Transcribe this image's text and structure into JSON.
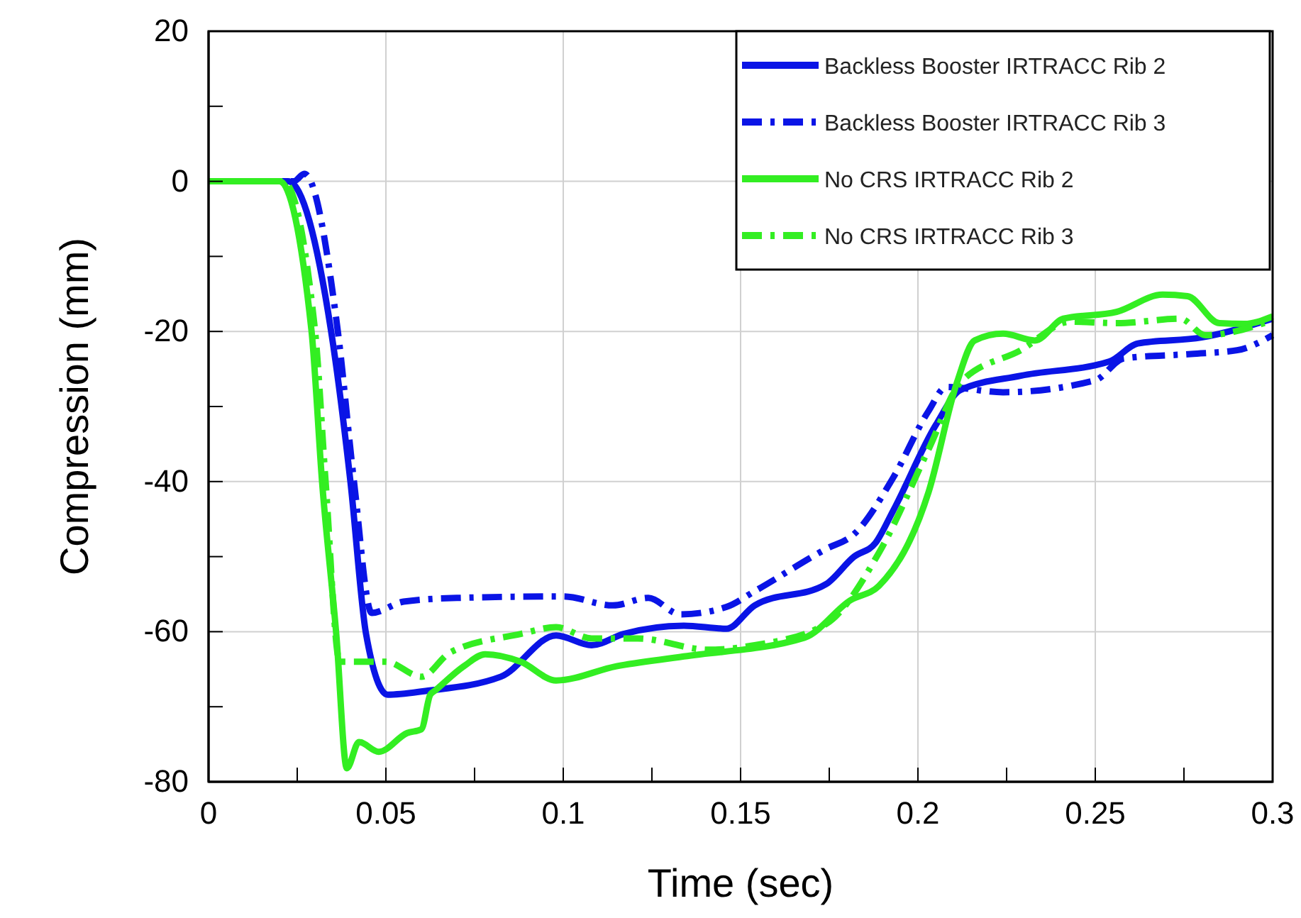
{
  "chart_data": {
    "type": "line",
    "xlabel": "Time (sec)",
    "ylabel": "Compression (mm)",
    "xlim": [
      0,
      0.3
    ],
    "ylim": [
      -80,
      20
    ],
    "xticks": [
      0,
      {
        "value": 0.025,
        "label": null
      },
      0.05,
      {
        "value": 0.075,
        "label": null
      },
      0.1,
      {
        "value": 0.125,
        "label": null
      },
      0.15,
      {
        "value": 0.175,
        "label": null
      },
      0.2,
      {
        "value": 0.225,
        "label": null
      },
      0.25,
      {
        "value": 0.275,
        "label": null
      },
      0.3
    ],
    "yticks": [
      -80,
      {
        "value": -70,
        "label": null
      },
      -60,
      {
        "value": -50,
        "label": null
      },
      -40,
      {
        "value": -30,
        "label": null
      },
      -20,
      {
        "value": -10,
        "label": null
      },
      0,
      {
        "value": 10,
        "label": null
      },
      20
    ],
    "grid": true,
    "legend": "top right",
    "series": [
      {
        "name": "Backless Booster IRTRACC Rib 2",
        "color": "#0a14e6",
        "line_style": "solid",
        "x": [
          0,
          0.0224,
          0.0345,
          0.04,
          0.0444,
          0.0505,
          0.0612,
          0.0824,
          0.098,
          0.108,
          0.117,
          0.134,
          0.146,
          0.154,
          0.174,
          0.182,
          0.188,
          0.193,
          0.205,
          0.212,
          0.229,
          0.254,
          0.262,
          0.28,
          0.3
        ],
        "values": [
          0,
          0,
          -19.8,
          -40,
          -60.3,
          -68.4,
          -67.9,
          -66,
          -60.5,
          -61.8,
          -60.3,
          -59.2,
          -59.6,
          -56.5,
          -53.7,
          -50,
          -48.2,
          -43.9,
          -32.5,
          -27.8,
          -25.9,
          -24,
          -21.6,
          -20.8,
          -18.3
        ]
      },
      {
        "name": "Backless Booster IRTRACC Rib 3",
        "color": "#0a14e6",
        "line_style": "dashdot",
        "x": [
          0,
          0.024,
          0.027,
          0.0364,
          0.041,
          0.046,
          0.055,
          0.07,
          0.1,
          0.114,
          0.124,
          0.133,
          0.146,
          0.154,
          0.174,
          0.182,
          0.193,
          0.203,
          0.208,
          0.224,
          0.25,
          0.258,
          0.277,
          0.29,
          0.3
        ],
        "values": [
          0,
          0,
          1,
          -19.8,
          -40,
          -57.5,
          -56,
          -55.5,
          -55.3,
          -56.5,
          -55.5,
          -57.7,
          -56.7,
          -54.6,
          -49,
          -47,
          -39.5,
          -30.6,
          -27.4,
          -28.1,
          -26.5,
          -23.6,
          -23,
          -22.5,
          -20.5
        ]
      },
      {
        "name": "No CRS IRTRACC Rib 2",
        "color": "#33ee22",
        "line_style": "solid",
        "x": [
          0,
          0.02,
          0.029,
          0.032,
          0.036,
          0.039,
          0.0424,
          0.048,
          0.056,
          0.06,
          0.0625,
          0.064,
          0.072,
          0.078,
          0.088,
          0.098,
          0.115,
          0.134,
          0.168,
          0.181,
          0.189,
          0.203,
          0.211,
          0.216,
          0.224,
          0.233,
          0.241,
          0.256,
          0.269,
          0.276,
          0.285,
          0.292,
          0.3
        ],
        "values": [
          0,
          0,
          -19.8,
          -40,
          -60.3,
          -78.2,
          -74.7,
          -76,
          -73.5,
          -73,
          -68.4,
          -67.8,
          -64.6,
          -63,
          -64,
          -66.5,
          -64.6,
          -63.3,
          -60.8,
          -55.8,
          -53.9,
          -41.4,
          -26.8,
          -21.2,
          -20.3,
          -21.2,
          -18.3,
          -17.4,
          -15.1,
          -15.3,
          -18.9,
          -19,
          -18
        ]
      },
      {
        "name": "No CRS IRTRACC Rib 3",
        "color": "#33ee22",
        "line_style": "dashdot",
        "x": [
          0,
          0.021,
          0.03,
          0.033,
          0.037,
          0.05,
          0.06,
          0.068,
          0.088,
          0.098,
          0.108,
          0.121,
          0.141,
          0.154,
          0.174,
          0.189,
          0.203,
          0.212,
          0.229,
          0.243,
          0.256,
          0.274,
          0.281,
          0.3
        ],
        "values": [
          0,
          0,
          -19.8,
          -40,
          -64,
          -64,
          -66,
          -62.8,
          -60.3,
          -59.4,
          -60.9,
          -60.9,
          -62.4,
          -61.8,
          -59,
          -49.5,
          -35.7,
          -26.8,
          -22.5,
          -18.7,
          -18.9,
          -18.3,
          -20.5,
          -18.5
        ]
      }
    ]
  }
}
